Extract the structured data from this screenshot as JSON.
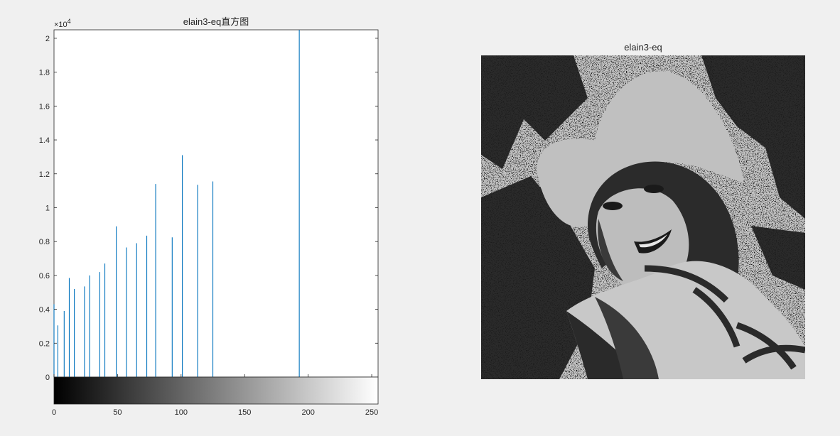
{
  "figure": {
    "left_title": "elain3-eq直方图",
    "right_title": "elain3-eq",
    "exponent_prefix": "×10",
    "exponent_power": "4"
  },
  "chart_data": {
    "type": "bar",
    "title": "elain3-eq直方图",
    "xlabel": "",
    "ylabel": "",
    "xlim": [
      0,
      255
    ],
    "ylim": [
      0,
      20500
    ],
    "y_exponent": 4,
    "yticks": [
      0,
      0.2,
      0.4,
      0.6,
      0.8,
      1,
      1.2,
      1.4,
      1.6,
      1.8,
      2
    ],
    "ytick_labels": [
      "0",
      "0.2",
      "0.4",
      "0.6",
      "0.8",
      "1",
      "1.2",
      "1.4",
      "1.6",
      "1.8",
      "2"
    ],
    "xticks": [
      0,
      50,
      100,
      150,
      200,
      250
    ],
    "xtick_labels": [
      "0",
      "50",
      "100",
      "150",
      "200",
      "250"
    ],
    "colorbar": "gray",
    "grid": false,
    "bar_color": "#0072bd",
    "x": [
      0,
      3,
      8,
      12,
      16,
      24,
      28,
      36,
      40,
      49,
      57,
      65,
      73,
      80,
      93,
      101,
      113,
      125,
      193
    ],
    "values": [
      4300,
      3050,
      3900,
      5850,
      5200,
      5350,
      6000,
      6200,
      6700,
      8900,
      7650,
      7900,
      8350,
      11400,
      8250,
      13100,
      11350,
      11550,
      20500
    ]
  },
  "image": {
    "background": "#c0c0c0",
    "dark": "#1e1e1e"
  }
}
